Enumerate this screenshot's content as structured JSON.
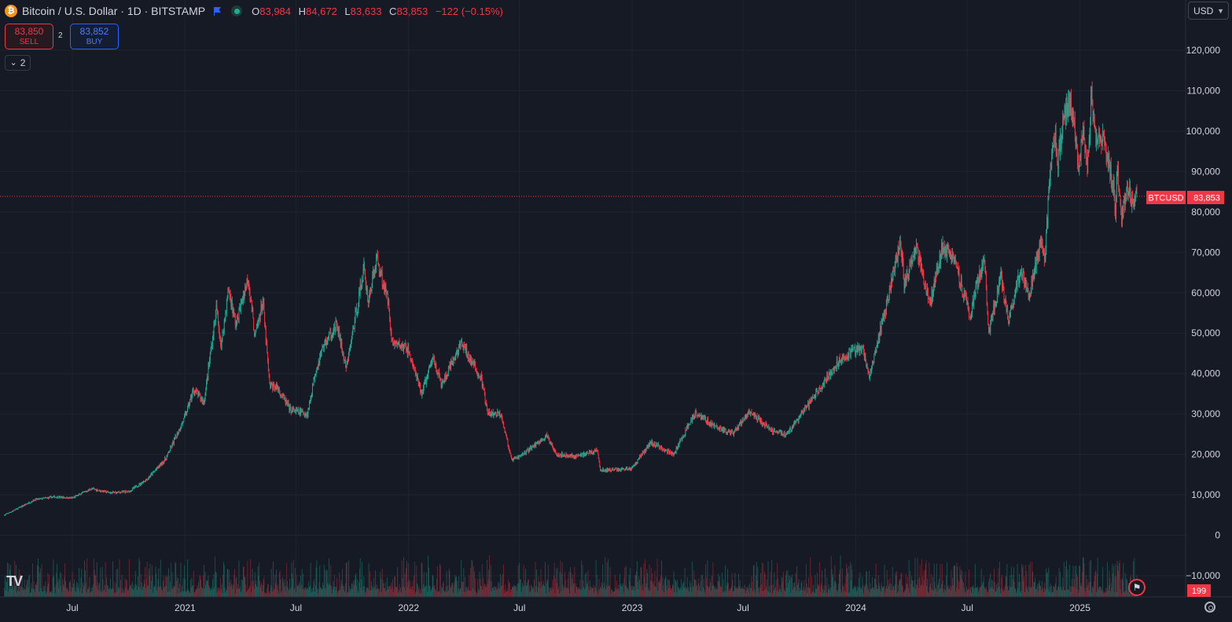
{
  "header": {
    "coin_glyph": "₿",
    "symbol_title": "Bitcoin / U.S. Dollar · 1D · BITSTAMP",
    "open_label": "O",
    "open_value": "83,984",
    "high_label": "H",
    "high_value": "84,672",
    "low_label": "L",
    "low_value": "83,633",
    "close_label": "C",
    "close_value": "83,853",
    "change": "−122 (−0.15%)"
  },
  "trade": {
    "sell_price": "83,850",
    "sell_label": "SELL",
    "spread": "2",
    "buy_price": "83,852",
    "buy_label": "BUY"
  },
  "indicators_toggle": {
    "chevron": "⌄",
    "count": "2"
  },
  "currency": {
    "value": "USD",
    "chevron": "▼"
  },
  "logo_text": "TV",
  "event_icon": "us-flag-icon",
  "colors": {
    "up": "#22ab94",
    "down": "#f23645",
    "background": "#161a25",
    "grid": "#1f2430",
    "text": "#d1d4dc",
    "last_price_line": "#f23645"
  },
  "chart_data": {
    "type": "candlestick",
    "symbol": "BTCUSD",
    "interval": "1D",
    "x_start": "2020-03-10",
    "x_end": "2025-04-04",
    "x_ticks": [
      {
        "date": "2020-07-01",
        "label": "Jul"
      },
      {
        "date": "2021-01-01",
        "label": "2021"
      },
      {
        "date": "2021-07-01",
        "label": "Jul"
      },
      {
        "date": "2022-01-01",
        "label": "2022"
      },
      {
        "date": "2022-07-01",
        "label": "Jul"
      },
      {
        "date": "2023-01-01",
        "label": "2023"
      },
      {
        "date": "2023-07-01",
        "label": "Jul"
      },
      {
        "date": "2024-01-01",
        "label": "2024"
      },
      {
        "date": "2024-07-01",
        "label": "Jul"
      },
      {
        "date": "2025-01-01",
        "label": "2025"
      }
    ],
    "y_ticks": [
      -10000,
      0,
      10000,
      20000,
      30000,
      40000,
      50000,
      60000,
      70000,
      80000,
      90000,
      100000,
      110000,
      120000
    ],
    "y_tick_labels": [
      "−10,000",
      "0",
      "10,000",
      "20,000",
      "30,000",
      "40,000",
      "50,000",
      "60,000",
      "70,000",
      "80,000",
      "90,000",
      "100,000",
      "110,000",
      "120,000"
    ],
    "ylim": [
      -15000,
      130000
    ],
    "last_price": 83853,
    "last_price_label": "83,853",
    "last_price_tag": "BTCUSD",
    "volume_last_label": "199",
    "price_path": [
      [
        "2020-03-12",
        5000
      ],
      [
        "2020-04-01",
        6500
      ],
      [
        "2020-05-01",
        8800
      ],
      [
        "2020-06-01",
        9500
      ],
      [
        "2020-07-01",
        9200
      ],
      [
        "2020-08-01",
        11500
      ],
      [
        "2020-09-01",
        10500
      ],
      [
        "2020-10-01",
        10800
      ],
      [
        "2020-11-01",
        14000
      ],
      [
        "2020-12-01",
        19000
      ],
      [
        "2020-12-31",
        29000
      ],
      [
        "2021-01-15",
        36000
      ],
      [
        "2021-02-01",
        33000
      ],
      [
        "2021-02-21",
        56000
      ],
      [
        "2021-03-01",
        47000
      ],
      [
        "2021-03-13",
        61000
      ],
      [
        "2021-03-25",
        52000
      ],
      [
        "2021-04-14",
        64000
      ],
      [
        "2021-04-25",
        49000
      ],
      [
        "2021-05-08",
        58000
      ],
      [
        "2021-05-19",
        37000
      ],
      [
        "2021-06-01",
        36500
      ],
      [
        "2021-06-22",
        31000
      ],
      [
        "2021-07-20",
        30000
      ],
      [
        "2021-08-01",
        40000
      ],
      [
        "2021-08-15",
        47000
      ],
      [
        "2021-09-06",
        52000
      ],
      [
        "2021-09-21",
        41000
      ],
      [
        "2021-10-20",
        66000
      ],
      [
        "2021-10-27",
        58000
      ],
      [
        "2021-11-10",
        68500
      ],
      [
        "2021-11-30",
        57000
      ],
      [
        "2021-12-04",
        48000
      ],
      [
        "2021-12-31",
        46000
      ],
      [
        "2022-01-22",
        35000
      ],
      [
        "2022-02-10",
        44000
      ],
      [
        "2022-02-24",
        37000
      ],
      [
        "2022-03-28",
        47500
      ],
      [
        "2022-04-30",
        38500
      ],
      [
        "2022-05-10",
        30000
      ],
      [
        "2022-06-01",
        30000
      ],
      [
        "2022-06-18",
        18500
      ],
      [
        "2022-07-01",
        19500
      ],
      [
        "2022-08-14",
        24500
      ],
      [
        "2022-09-01",
        20000
      ],
      [
        "2022-10-01",
        19500
      ],
      [
        "2022-11-05",
        21000
      ],
      [
        "2022-11-10",
        16000
      ],
      [
        "2022-12-31",
        16500
      ],
      [
        "2023-01-31",
        23000
      ],
      [
        "2023-03-10",
        20000
      ],
      [
        "2023-04-14",
        30500
      ],
      [
        "2023-05-15",
        27000
      ],
      [
        "2023-06-15",
        25000
      ],
      [
        "2023-07-10",
        30500
      ],
      [
        "2023-08-17",
        26000
      ],
      [
        "2023-09-11",
        25000
      ],
      [
        "2023-10-24",
        34000
      ],
      [
        "2023-12-08",
        44000
      ],
      [
        "2024-01-11",
        46500
      ],
      [
        "2024-01-23",
        39000
      ],
      [
        "2024-02-28",
        62000
      ],
      [
        "2024-03-14",
        73000
      ],
      [
        "2024-03-20",
        62000
      ],
      [
        "2024-04-08",
        72000
      ],
      [
        "2024-05-01",
        57000
      ],
      [
        "2024-05-21",
        71000
      ],
      [
        "2024-06-10",
        69000
      ],
      [
        "2024-07-05",
        54000
      ],
      [
        "2024-07-29",
        69500
      ],
      [
        "2024-08-05",
        50000
      ],
      [
        "2024-08-25",
        64000
      ],
      [
        "2024-09-06",
        53000
      ],
      [
        "2024-09-27",
        66000
      ],
      [
        "2024-10-10",
        59000
      ],
      [
        "2024-10-29",
        72500
      ],
      [
        "2024-11-05",
        68000
      ],
      [
        "2024-11-13",
        90000
      ],
      [
        "2024-11-22",
        99000
      ],
      [
        "2024-11-26",
        92000
      ],
      [
        "2024-12-05",
        103000
      ],
      [
        "2024-12-17",
        107500
      ],
      [
        "2024-12-30",
        92000
      ],
      [
        "2025-01-07",
        102000
      ],
      [
        "2025-01-13",
        90000
      ],
      [
        "2025-01-20",
        109000
      ],
      [
        "2025-01-27",
        98000
      ],
      [
        "2025-02-10",
        97000
      ],
      [
        "2025-02-25",
        86000
      ],
      [
        "2025-02-28",
        79000
      ],
      [
        "2025-03-03",
        92000
      ],
      [
        "2025-03-10",
        78500
      ],
      [
        "2025-03-20",
        86000
      ],
      [
        "2025-03-28",
        82000
      ],
      [
        "2025-04-02",
        85000
      ],
      [
        "2025-04-04",
        83853
      ]
    ]
  }
}
